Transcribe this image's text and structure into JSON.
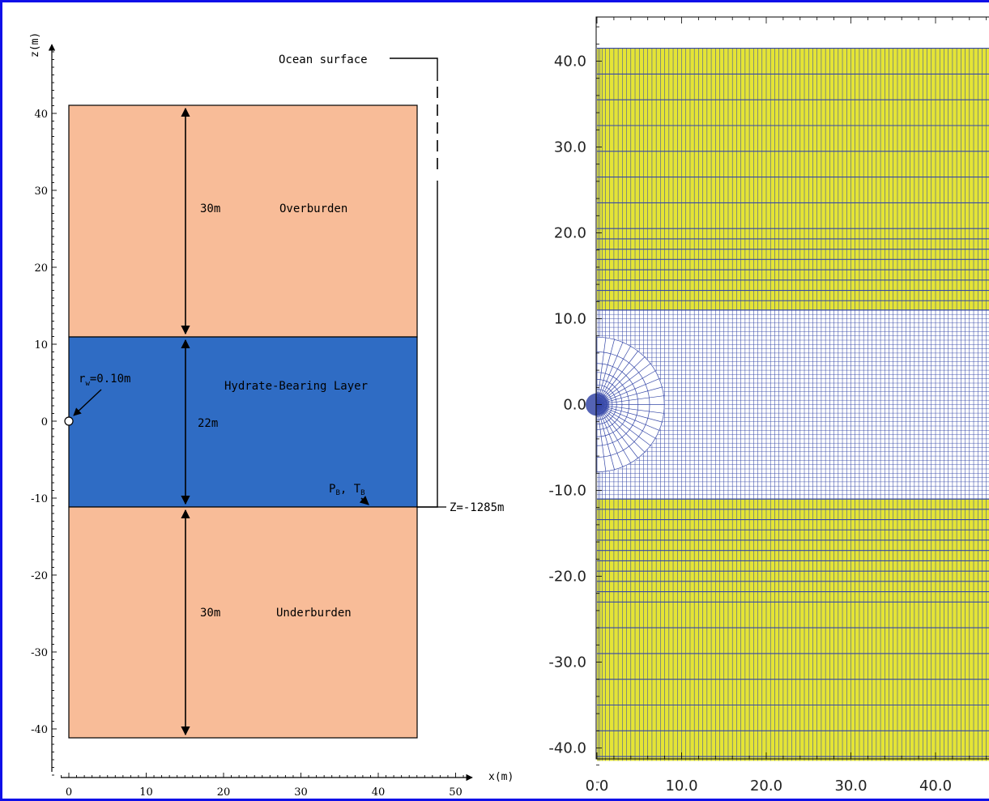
{
  "left_panel": {
    "axis": {
      "x_label": "x(m)",
      "z_label": "z(m)",
      "x_ticks": [
        "0",
        "10",
        "20",
        "30",
        "40",
        "50"
      ],
      "z_ticks": [
        "40",
        "30",
        "20",
        "10",
        "0",
        "-10",
        "-20",
        "-30",
        "-40"
      ]
    },
    "layers": {
      "overburden": {
        "label": "Overburden",
        "thickness": "30m",
        "color": "#f8bc98"
      },
      "hydrate": {
        "label": "Hydrate-Bearing Layer",
        "thickness": "22m",
        "color": "#2f6cc4"
      },
      "underburden": {
        "label": "Underburden",
        "thickness": "30m",
        "color": "#f8bc98"
      }
    },
    "annotations": {
      "ocean_surface": "Ocean surface",
      "depth": "Z=-1285m",
      "well_radius_prefix": "r",
      "well_radius_sub": "w",
      "well_radius_value": "=0.10m",
      "pb": "P",
      "pb_sub": "B",
      "tb": "T",
      "tb_sub": "B",
      "sep": ", "
    }
  },
  "right_panel": {
    "axis": {
      "x_ticks": [
        "0.0",
        "10.0",
        "20.0",
        "30.0",
        "40.0"
      ],
      "y_ticks": [
        "40.0",
        "30.0",
        "20.0",
        "10.0",
        "0.0",
        "-10.0",
        "-20.0",
        "-30.0",
        "-40.0"
      ]
    },
    "colors": {
      "bounding_fill": "#e4e436",
      "grid_line": "#3648a8",
      "hbl_fill": "#ffffff"
    }
  }
}
